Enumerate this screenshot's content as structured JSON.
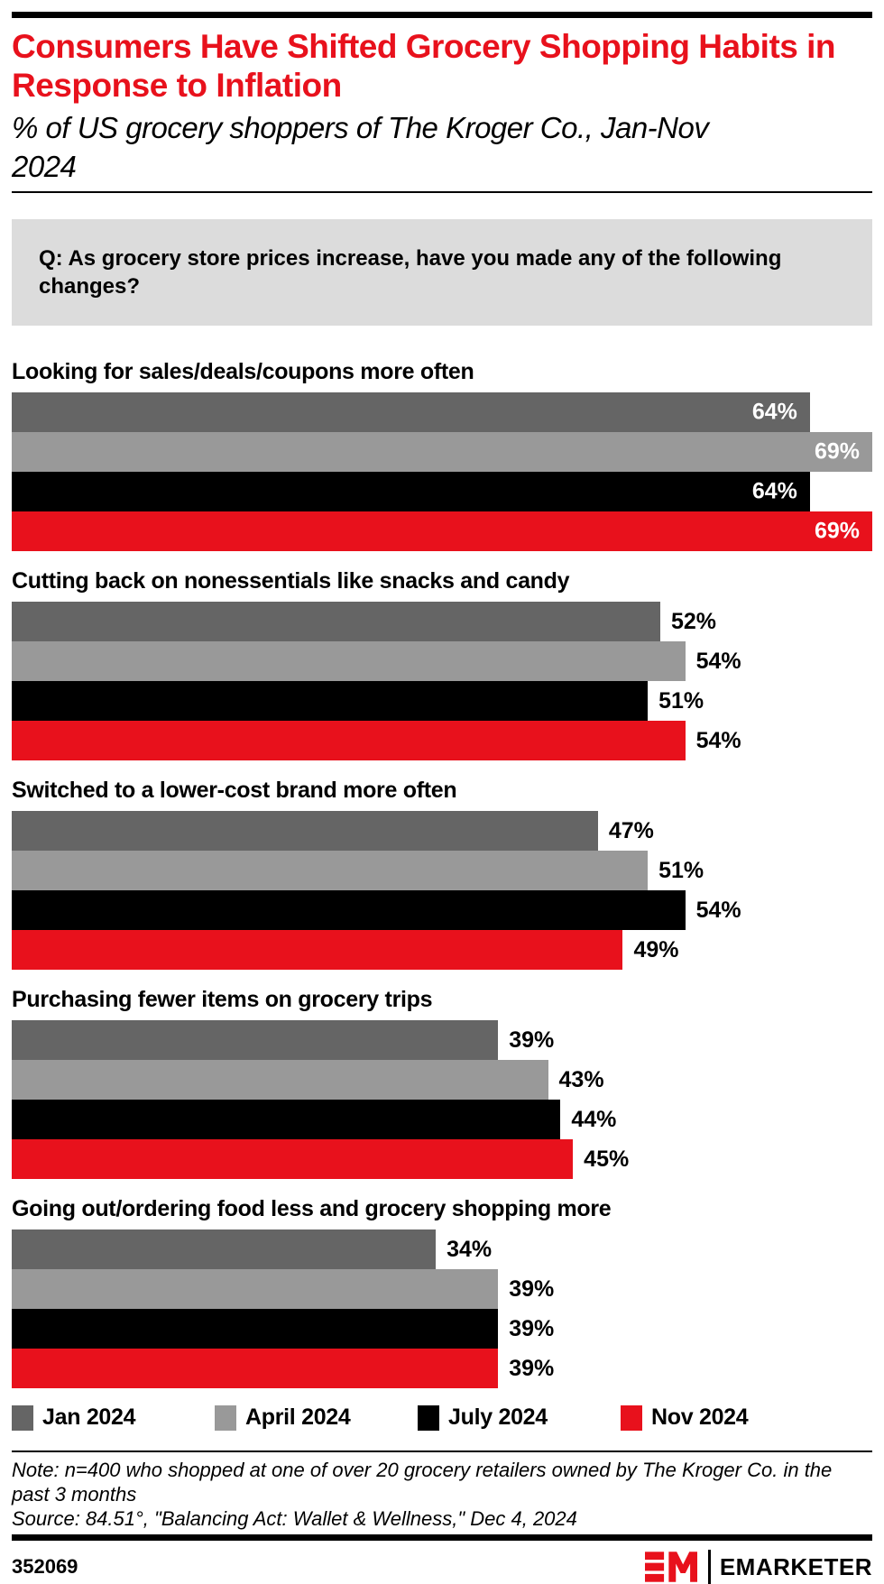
{
  "header": {
    "title": "Consumers Have Shifted Grocery Shopping Habits in Response to Inflation",
    "subtitle": "% of US grocery shoppers of The Kroger Co., Jan-Nov 2024"
  },
  "question": "Q: As grocery store prices increase, have you made any of the following changes?",
  "chart_data": {
    "type": "bar",
    "orientation": "horizontal",
    "value_suffix": "%",
    "scale_max": 69,
    "grid": false,
    "legend_position": "bottom",
    "inside_label_threshold": 60,
    "inside_label_color": "#ffffff",
    "outside_label_color": "#000000",
    "categories": [
      "Looking for sales/deals/coupons more often",
      "Cutting back on nonessentials like snacks and candy",
      "Switched to a lower-cost brand more often",
      "Purchasing fewer items on grocery trips",
      "Going out/ordering food less and grocery shopping more"
    ],
    "series": [
      {
        "name": "Jan 2024",
        "color": "#656565",
        "values": [
          64,
          52,
          47,
          39,
          34
        ]
      },
      {
        "name": "April 2024",
        "color": "#999999",
        "values": [
          69,
          54,
          51,
          43,
          39
        ]
      },
      {
        "name": "July 2024",
        "color": "#000000",
        "values": [
          64,
          51,
          54,
          44,
          39
        ]
      },
      {
        "name": "Nov 2024",
        "color": "#e8111c",
        "values": [
          69,
          54,
          49,
          45,
          39
        ]
      }
    ]
  },
  "note": "Note: n=400 who shopped at one of over 20 grocery retailers owned by The Kroger Co. in the past 3 months",
  "source": "Source: 84.51°, \"Balancing Act: Wallet & Wellness,\" Dec 4, 2024",
  "footer": {
    "chart_id": "352069",
    "brand": "EMARKETER"
  },
  "colors": {
    "accent_red": "#e8111c",
    "dark_gray": "#656565",
    "mid_gray": "#999999",
    "black": "#000000",
    "question_bg": "#dcdcdc"
  }
}
